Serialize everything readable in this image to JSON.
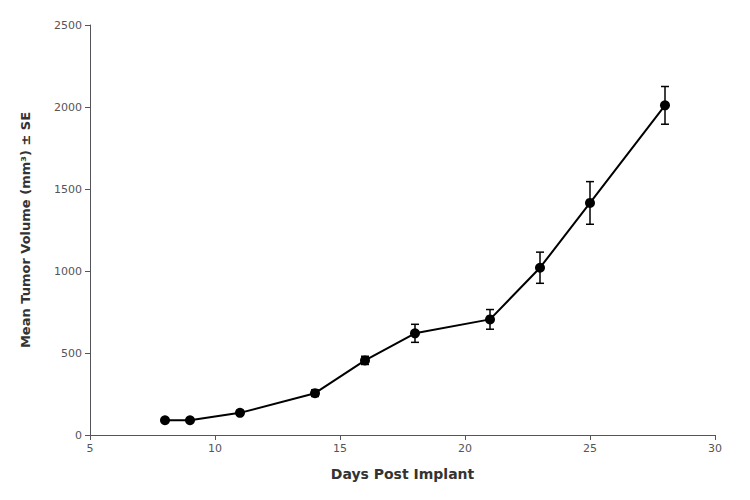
{
  "chart_data": {
    "type": "line",
    "x": [
      8,
      9,
      11,
      14,
      16,
      18,
      21,
      23,
      25,
      28
    ],
    "values": [
      90,
      90,
      135,
      255,
      455,
      620,
      705,
      1020,
      1415,
      2010
    ],
    "yerr": [
      10,
      10,
      15,
      20,
      25,
      55,
      60,
      95,
      130,
      115
    ],
    "xlabel": "Days Post Implant",
    "ylabel": "Mean Tumor Volume (mm³) ± SE",
    "xlim": [
      5,
      30
    ],
    "ylim": [
      0,
      2500
    ],
    "xticks": [
      5,
      10,
      15,
      20,
      25,
      30
    ],
    "yticks": [
      0,
      500,
      1000,
      1500,
      2000,
      2500
    ],
    "color": "#000000",
    "marker": "circle",
    "grid": false
  }
}
